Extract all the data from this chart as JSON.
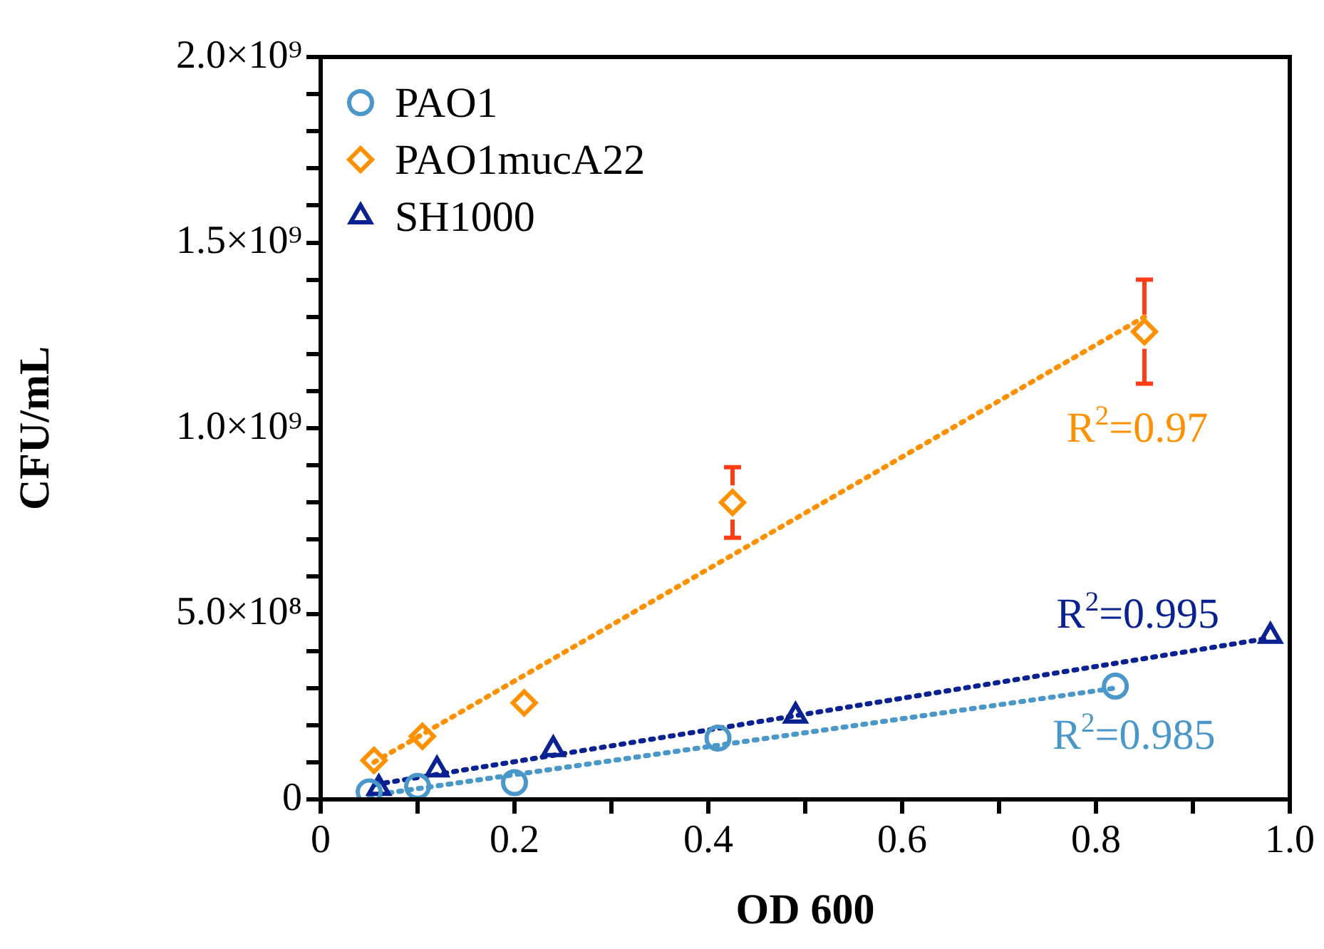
{
  "chart_data": {
    "type": "scatter",
    "xlabel": "OD 600",
    "ylabel": "CFU/mL",
    "xlim": [
      0,
      1.0
    ],
    "xticks": [
      0,
      {
        "value": 0.1,
        "label": null
      },
      0.2,
      {
        "value": 0.3,
        "label": null
      },
      0.4,
      {
        "value": 0.5,
        "label": null
      },
      0.6,
      {
        "value": 0.7,
        "label": null
      },
      0.8,
      {
        "value": 0.9,
        "label": null
      },
      {
        "value": 1.0,
        "label": "1.0"
      }
    ],
    "ylim": [
      0,
      2000000000
    ],
    "yticks": [
      0,
      {
        "value": 100000000,
        "label": null
      },
      {
        "value": 200000000,
        "label": null
      },
      {
        "value": 300000000,
        "label": null
      },
      {
        "value": 400000000,
        "label": null
      },
      {
        "value": 500000000,
        "label": "5.0×10⁸"
      },
      {
        "value": 600000000,
        "label": null
      },
      {
        "value": 700000000,
        "label": null
      },
      {
        "value": 800000000,
        "label": null
      },
      {
        "value": 900000000,
        "label": null
      },
      {
        "value": 1000000000,
        "label": "1.0×10⁹"
      },
      {
        "value": 1100000000,
        "label": null
      },
      {
        "value": 1200000000,
        "label": null
      },
      {
        "value": 1300000000,
        "label": null
      },
      {
        "value": 1400000000,
        "label": null
      },
      {
        "value": 1500000000,
        "label": "1.5×10⁹"
      },
      {
        "value": 1600000000,
        "label": null
      },
      {
        "value": 1700000000,
        "label": null
      },
      {
        "value": 1800000000,
        "label": null
      },
      {
        "value": 1900000000,
        "label": null
      },
      {
        "value": 2000000000,
        "label": "2.0×10⁹"
      }
    ],
    "grid": false,
    "legend": "top left",
    "series": [
      {
        "name": "PAO1",
        "color": "#4a97c9",
        "marker": "circle",
        "x": [
          0.05,
          0.1,
          0.2,
          0.41,
          0.82
        ],
        "values": [
          20000000,
          35000000,
          45000000,
          165000000,
          305000000
        ]
      },
      {
        "name": "PAO1mucA22",
        "color": "#ff9100",
        "marker": "diamond",
        "x": [
          0.055,
          0.105,
          0.21,
          0.425,
          0.85
        ],
        "values": [
          105000000,
          170000000,
          260000000,
          800000000,
          1260000000
        ],
        "errors": [
          null,
          null,
          null,
          95000000,
          140000000
        ]
      },
      {
        "name": "SH1000",
        "color": "#0a2191",
        "marker": "triangle",
        "x": [
          0.06,
          0.12,
          0.24,
          0.49,
          0.98
        ],
        "values": [
          30000000,
          80000000,
          135000000,
          225000000,
          440000000
        ]
      },
      {
        "type": "line",
        "color": "#4a97c9",
        "marker": "none",
        "line_style": "dotted",
        "x": [
          0.05,
          0.82
        ],
        "values": [
          10000000,
          300000000
        ]
      },
      {
        "type": "line",
        "color": "#ff9100",
        "marker": "none",
        "line_style": "dotted",
        "x": [
          0.055,
          0.85
        ],
        "values": [
          100000000,
          1300000000
        ]
      },
      {
        "type": "line",
        "color": "#0a2191",
        "marker": "none",
        "line_style": "dotted",
        "x": [
          0.056,
          0.98
        ],
        "values": [
          40000000,
          435000000
        ]
      }
    ],
    "annotations": [
      "R$^{2}$=0.985",
      "R$^{2}$=0.97",
      "R$^{2}$=0.995"
    ]
  }
}
